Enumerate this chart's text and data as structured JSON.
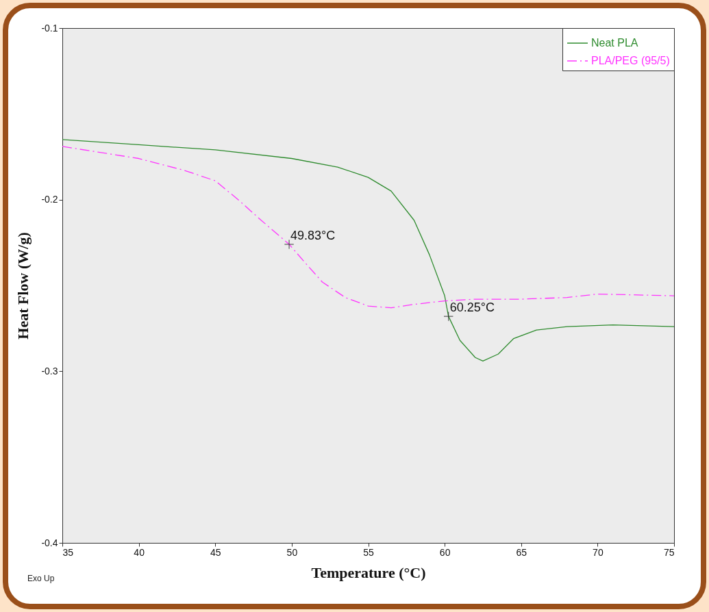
{
  "chart_data": {
    "type": "line",
    "xlabel": "Temperature (°C)",
    "ylabel": "Heat Flow (W/g)",
    "xlim": [
      35,
      75
    ],
    "ylim": [
      -0.4,
      -0.1
    ],
    "xticks": [
      35,
      40,
      45,
      50,
      55,
      60,
      65,
      70,
      75
    ],
    "yticks": [
      -0.4,
      -0.3,
      -0.2,
      -0.1
    ],
    "grid": false,
    "legend": "top right",
    "marker": "none",
    "series": [
      {
        "name": "Neat PLA",
        "color": "#2e8b2e",
        "line_style": "solid",
        "x": [
          35,
          40,
          45,
          50,
          53,
          55,
          56.5,
          58,
          59,
          60,
          60.25,
          61,
          62,
          62.5,
          63.5,
          64.5,
          66,
          68,
          71,
          75
        ],
        "values": [
          -0.165,
          -0.168,
          -0.171,
          -0.176,
          -0.181,
          -0.187,
          -0.195,
          -0.212,
          -0.232,
          -0.256,
          -0.268,
          -0.282,
          -0.292,
          -0.294,
          -0.29,
          -0.281,
          -0.276,
          -0.274,
          -0.273,
          -0.274
        ]
      },
      {
        "name": "PLA/PEG (95/5)",
        "color": "#ff33ff",
        "line_style": "dashed",
        "x": [
          35,
          40,
          43,
          45,
          46.5,
          48,
          49.83,
          51,
          52,
          53.5,
          55,
          56.5,
          58,
          60,
          62,
          65,
          68,
          70,
          75
        ],
        "values": [
          -0.169,
          -0.176,
          -0.183,
          -0.189,
          -0.2,
          -0.212,
          -0.226,
          -0.238,
          -0.248,
          -0.257,
          -0.262,
          -0.263,
          -0.261,
          -0.259,
          -0.258,
          -0.258,
          -0.257,
          -0.255,
          -0.256
        ]
      }
    ],
    "annotations": [
      {
        "text": "49.83°C",
        "x": 49.83,
        "y": -0.226
      },
      {
        "text": "60.25°C",
        "x": 60.25,
        "y": -0.268
      },
      "Exo Up"
    ]
  }
}
